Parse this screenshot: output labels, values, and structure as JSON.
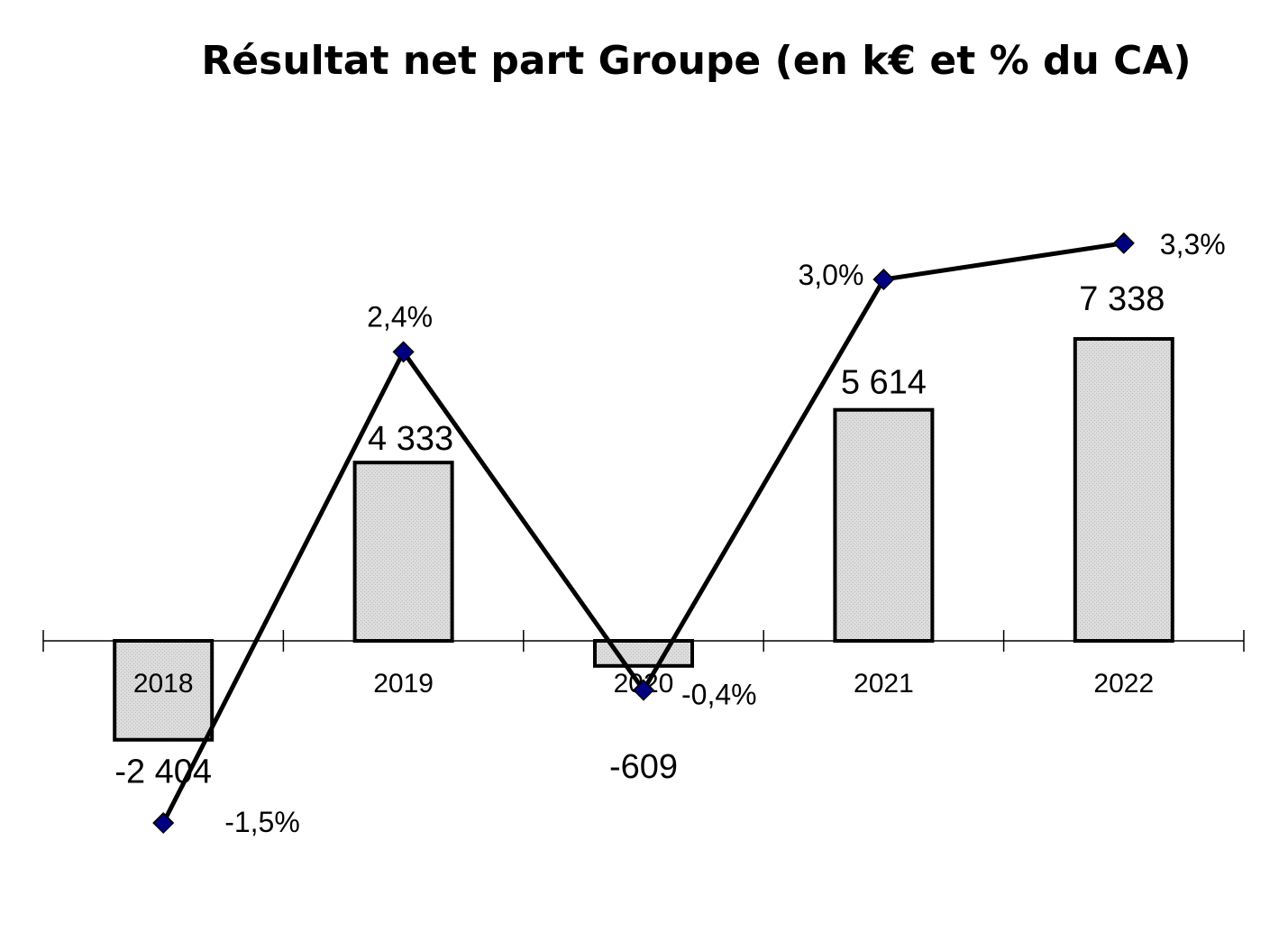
{
  "chart_data": {
    "type": "bar",
    "title": "Résultat net part Groupe (en k€ et % du CA)",
    "categories": [
      "2018",
      "2019",
      "2020",
      "2021",
      "2022"
    ],
    "series": [
      {
        "values": [
          -2404,
          4333,
          -609,
          5614,
          7338
        ],
        "value_labels": [
          "-2 404",
          "4 333",
          "-609",
          "5 614",
          "7 338"
        ],
        "kind": "bar",
        "color": "#d9d9d9"
      },
      {
        "values": [
          -1.5,
          2.4,
          -0.4,
          3.0,
          3.3
        ],
        "value_labels": [
          "-1,5%",
          "2,4%",
          "-0,4%",
          "3,0%",
          "3,3%"
        ],
        "kind": "line",
        "color": "#000000",
        "marker_color": "#000080"
      }
    ],
    "grid": false,
    "legend": "none"
  }
}
